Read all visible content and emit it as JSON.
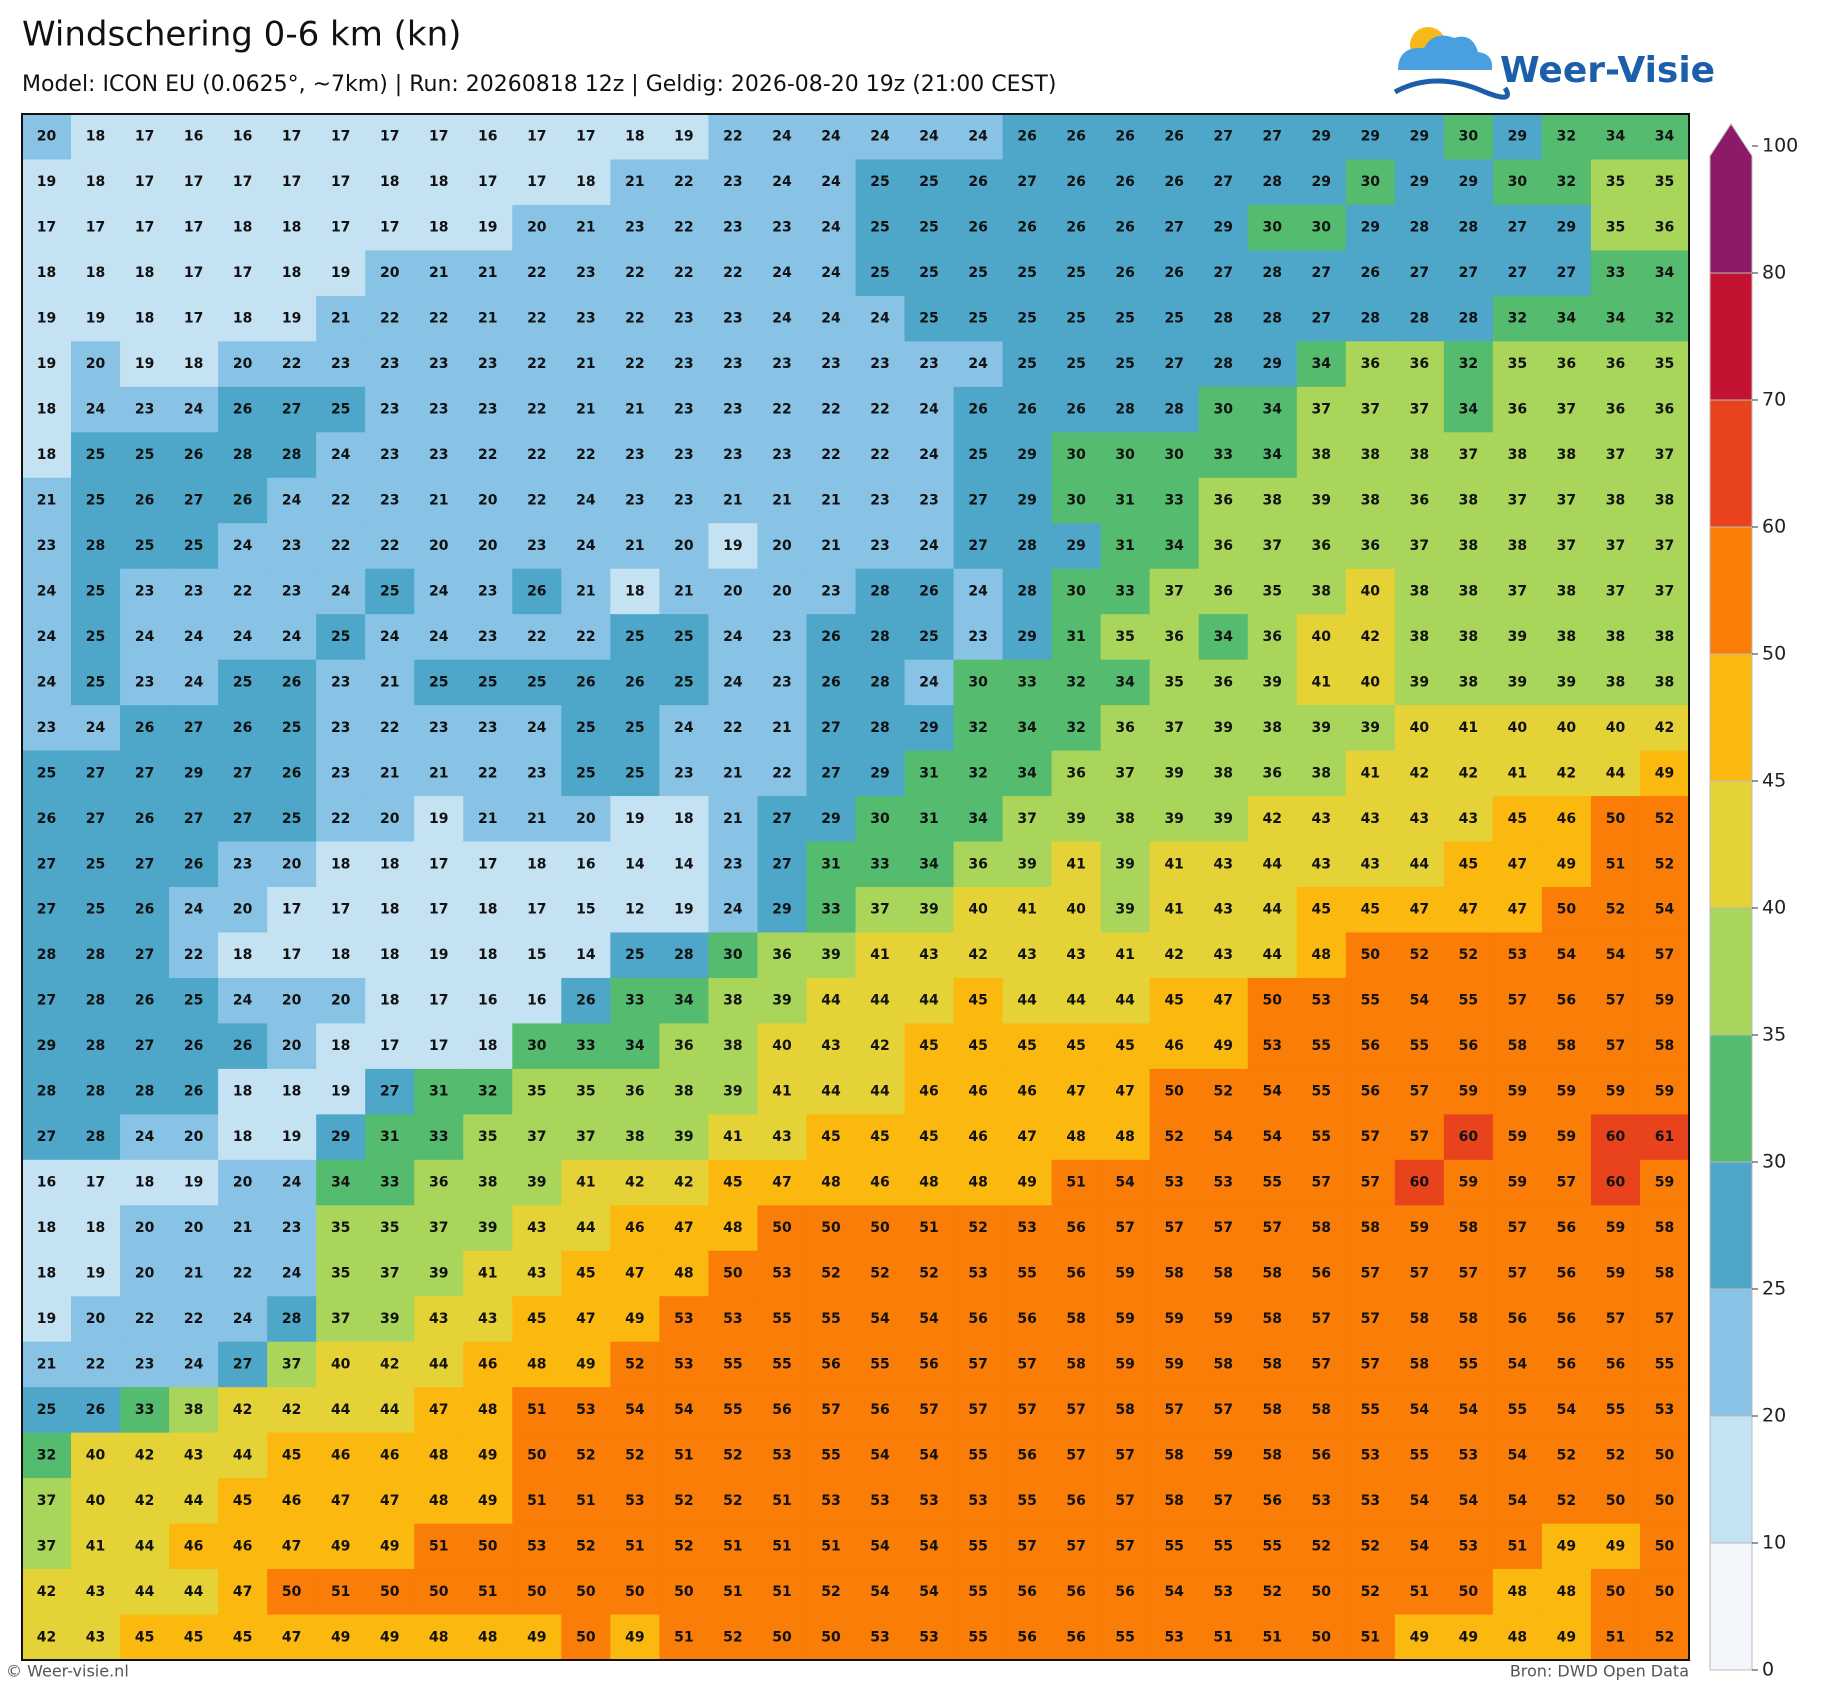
{
  "header": {
    "title": "Windschering 0-6 km (kn)",
    "subtitle": "Model: ICON EU (0.0625°, ~7km)  |  Run: 20260818 12z  |  Geldig: 2026-08-20 19z (21:00 CEST)"
  },
  "logo": {
    "text": "Weer-Visie"
  },
  "map": {
    "grid": [
      [
        20,
        18,
        17,
        16,
        16,
        17,
        17,
        17,
        17,
        16,
        17,
        17,
        18,
        19,
        22,
        24,
        24,
        24,
        24,
        24,
        26,
        26,
        26,
        26,
        27,
        27,
        29,
        29,
        29,
        30,
        29,
        32,
        34,
        34
      ],
      [
        19,
        18,
        17,
        17,
        17,
        17,
        17,
        18,
        18,
        17,
        17,
        18,
        21,
        22,
        23,
        24,
        24,
        25,
        25,
        26,
        27,
        26,
        26,
        26,
        27,
        28,
        29,
        30,
        29,
        29,
        30,
        32,
        35,
        35
      ],
      [
        17,
        17,
        17,
        17,
        18,
        18,
        17,
        17,
        18,
        19,
        20,
        21,
        23,
        22,
        23,
        23,
        24,
        25,
        25,
        26,
        26,
        26,
        26,
        27,
        29,
        30,
        30,
        29,
        28,
        28,
        27,
        29,
        35,
        36
      ],
      [
        18,
        18,
        18,
        17,
        17,
        18,
        19,
        20,
        21,
        21,
        22,
        23,
        22,
        22,
        22,
        24,
        24,
        25,
        25,
        25,
        25,
        25,
        26,
        26,
        27,
        28,
        27,
        26,
        27,
        27,
        27,
        27,
        33,
        34
      ],
      [
        19,
        19,
        18,
        17,
        18,
        19,
        21,
        22,
        22,
        21,
        22,
        23,
        22,
        23,
        23,
        24,
        24,
        24,
        25,
        25,
        25,
        25,
        25,
        25,
        28,
        28,
        27,
        28,
        28,
        28,
        32,
        34,
        34,
        32
      ],
      [
        19,
        20,
        19,
        18,
        20,
        22,
        23,
        23,
        23,
        23,
        22,
        21,
        22,
        23,
        23,
        23,
        23,
        23,
        23,
        24,
        25,
        25,
        25,
        27,
        28,
        29,
        34,
        36,
        36,
        32,
        35,
        36,
        36,
        35
      ],
      [
        18,
        24,
        23,
        24,
        26,
        27,
        25,
        23,
        23,
        23,
        22,
        21,
        21,
        23,
        23,
        22,
        22,
        22,
        24,
        26,
        26,
        26,
        28,
        28,
        30,
        34,
        37,
        37,
        37,
        34,
        36,
        37,
        36,
        36
      ],
      [
        18,
        25,
        25,
        26,
        28,
        28,
        24,
        23,
        23,
        22,
        22,
        22,
        23,
        23,
        23,
        23,
        22,
        22,
        24,
        25,
        29,
        30,
        30,
        30,
        33,
        34,
        38,
        38,
        38,
        37,
        38,
        38,
        37,
        37
      ],
      [
        21,
        25,
        26,
        27,
        26,
        24,
        22,
        23,
        21,
        20,
        22,
        24,
        23,
        23,
        21,
        21,
        21,
        23,
        23,
        27,
        29,
        30,
        31,
        33,
        36,
        38,
        39,
        38,
        36,
        38,
        37,
        37,
        38,
        38
      ],
      [
        23,
        28,
        25,
        25,
        24,
        23,
        22,
        22,
        20,
        20,
        23,
        24,
        21,
        20,
        19,
        20,
        21,
        23,
        24,
        27,
        28,
        29,
        31,
        34,
        36,
        37,
        36,
        36,
        37,
        38,
        38,
        37,
        37,
        37
      ],
      [
        24,
        25,
        23,
        23,
        22,
        23,
        24,
        25,
        24,
        23,
        26,
        21,
        18,
        21,
        20,
        20,
        23,
        28,
        26,
        24,
        28,
        30,
        33,
        37,
        36,
        35,
        38,
        40,
        38,
        38,
        37,
        38,
        37,
        37
      ],
      [
        24,
        25,
        24,
        24,
        24,
        24,
        25,
        24,
        24,
        23,
        22,
        22,
        25,
        25,
        24,
        23,
        26,
        28,
        25,
        23,
        29,
        31,
        35,
        36,
        34,
        36,
        40,
        42,
        38,
        38,
        39,
        38,
        38,
        38
      ],
      [
        24,
        25,
        23,
        24,
        25,
        26,
        23,
        21,
        25,
        25,
        25,
        26,
        26,
        25,
        24,
        23,
        26,
        28,
        24,
        30,
        33,
        32,
        34,
        35,
        36,
        39,
        41,
        40,
        39,
        38,
        39,
        39,
        38,
        38
      ],
      [
        23,
        24,
        26,
        27,
        26,
        25,
        23,
        22,
        23,
        23,
        24,
        25,
        25,
        24,
        22,
        21,
        27,
        28,
        29,
        32,
        34,
        32,
        36,
        37,
        39,
        38,
        39,
        39,
        40,
        41,
        40,
        40,
        40,
        42
      ],
      [
        25,
        27,
        27,
        29,
        27,
        26,
        23,
        21,
        21,
        22,
        23,
        25,
        25,
        23,
        21,
        22,
        27,
        29,
        31,
        32,
        34,
        36,
        37,
        39,
        38,
        36,
        38,
        41,
        42,
        42,
        41,
        42,
        44,
        49
      ],
      [
        26,
        27,
        26,
        27,
        27,
        25,
        22,
        20,
        19,
        21,
        21,
        20,
        19,
        18,
        21,
        27,
        29,
        30,
        31,
        34,
        37,
        39,
        38,
        39,
        39,
        42,
        43,
        43,
        43,
        43,
        45,
        46,
        50,
        52
      ],
      [
        27,
        25,
        27,
        26,
        23,
        20,
        18,
        18,
        17,
        17,
        18,
        16,
        14,
        14,
        23,
        27,
        31,
        33,
        34,
        36,
        39,
        41,
        39,
        41,
        43,
        44,
        43,
        43,
        44,
        45,
        47,
        49,
        51,
        52
      ],
      [
        27,
        25,
        26,
        24,
        20,
        17,
        17,
        18,
        17,
        18,
        17,
        15,
        12,
        19,
        24,
        29,
        33,
        37,
        39,
        40,
        41,
        40,
        39,
        41,
        43,
        44,
        45,
        45,
        47,
        47,
        47,
        50,
        52,
        54
      ],
      [
        28,
        28,
        27,
        22,
        18,
        17,
        18,
        18,
        19,
        18,
        15,
        14,
        25,
        28,
        30,
        36,
        39,
        41,
        43,
        42,
        43,
        43,
        41,
        42,
        43,
        44,
        48,
        50,
        52,
        52,
        53,
        54,
        54,
        57
      ],
      [
        27,
        28,
        26,
        25,
        24,
        20,
        20,
        18,
        17,
        16,
        16,
        26,
        33,
        34,
        38,
        39,
        44,
        44,
        44,
        45,
        44,
        44,
        44,
        45,
        47,
        50,
        53,
        55,
        54,
        55,
        57,
        56,
        57,
        59
      ],
      [
        29,
        28,
        27,
        26,
        26,
        20,
        18,
        17,
        17,
        18,
        30,
        33,
        34,
        36,
        38,
        40,
        43,
        42,
        45,
        45,
        45,
        45,
        45,
        46,
        49,
        53,
        55,
        56,
        55,
        56,
        58,
        58,
        57,
        58
      ],
      [
        28,
        28,
        28,
        26,
        18,
        18,
        19,
        27,
        31,
        32,
        35,
        35,
        36,
        38,
        39,
        41,
        44,
        44,
        46,
        46,
        46,
        47,
        47,
        50,
        52,
        54,
        55,
        56,
        57,
        59,
        59,
        59,
        59,
        59
      ],
      [
        27,
        28,
        24,
        20,
        18,
        19,
        29,
        31,
        33,
        35,
        37,
        37,
        38,
        39,
        41,
        43,
        45,
        45,
        45,
        46,
        47,
        48,
        48,
        52,
        54,
        54,
        55,
        57,
        57,
        60,
        59,
        59,
        60,
        61
      ],
      [
        16,
        17,
        18,
        19,
        20,
        24,
        34,
        33,
        36,
        38,
        39,
        41,
        42,
        42,
        45,
        47,
        48,
        46,
        48,
        48,
        49,
        51,
        54,
        53,
        53,
        55,
        57,
        57,
        60,
        59,
        59,
        57,
        60,
        59
      ],
      [
        18,
        18,
        20,
        20,
        21,
        23,
        35,
        35,
        37,
        39,
        43,
        44,
        46,
        47,
        48,
        50,
        50,
        50,
        51,
        52,
        53,
        56,
        57,
        57,
        57,
        57,
        58,
        58,
        59,
        58,
        57,
        56,
        59,
        58
      ],
      [
        18,
        19,
        20,
        21,
        22,
        24,
        35,
        37,
        39,
        41,
        43,
        45,
        47,
        48,
        50,
        53,
        52,
        52,
        52,
        53,
        55,
        56,
        59,
        58,
        58,
        58,
        56,
        57,
        57,
        57,
        57,
        56,
        59,
        58
      ],
      [
        19,
        20,
        22,
        22,
        24,
        28,
        37,
        39,
        43,
        43,
        45,
        47,
        49,
        53,
        53,
        55,
        55,
        54,
        54,
        56,
        56,
        58,
        59,
        59,
        59,
        58,
        57,
        57,
        58,
        58,
        56,
        56,
        57,
        57
      ],
      [
        21,
        22,
        23,
        24,
        27,
        37,
        40,
        42,
        44,
        46,
        48,
        49,
        52,
        53,
        55,
        55,
        56,
        55,
        56,
        57,
        57,
        58,
        59,
        59,
        58,
        58,
        57,
        57,
        58,
        55,
        54,
        56,
        56,
        55
      ],
      [
        25,
        26,
        33,
        38,
        42,
        42,
        44,
        44,
        47,
        48,
        51,
        53,
        54,
        54,
        55,
        56,
        57,
        56,
        57,
        57,
        57,
        57,
        58,
        57,
        57,
        58,
        58,
        55,
        54,
        54,
        55,
        54,
        55,
        53
      ],
      [
        32,
        40,
        42,
        43,
        44,
        45,
        46,
        46,
        48,
        49,
        50,
        52,
        52,
        51,
        52,
        53,
        55,
        54,
        54,
        55,
        56,
        57,
        57,
        58,
        59,
        58,
        56,
        53,
        55,
        53,
        54,
        52,
        52,
        50
      ],
      [
        37,
        40,
        42,
        44,
        45,
        46,
        47,
        47,
        48,
        49,
        51,
        51,
        53,
        52,
        52,
        51,
        53,
        53,
        53,
        53,
        55,
        56,
        57,
        58,
        57,
        56,
        53,
        53,
        54,
        54,
        54,
        52,
        50,
        50
      ],
      [
        37,
        41,
        44,
        46,
        46,
        47,
        49,
        49,
        51,
        50,
        53,
        52,
        51,
        52,
        51,
        51,
        51,
        54,
        54,
        55,
        57,
        57,
        57,
        55,
        55,
        55,
        52,
        52,
        54,
        53,
        51,
        49,
        49,
        50
      ],
      [
        42,
        43,
        44,
        44,
        47,
        50,
        51,
        50,
        50,
        51,
        50,
        50,
        50,
        50,
        51,
        51,
        52,
        54,
        54,
        55,
        56,
        56,
        56,
        54,
        53,
        52,
        50,
        52,
        51,
        50,
        48,
        48,
        50,
        50
      ],
      [
        42,
        43,
        45,
        45,
        45,
        47,
        49,
        49,
        48,
        48,
        49,
        50,
        49,
        51,
        52,
        50,
        50,
        53,
        53,
        55,
        56,
        56,
        55,
        53,
        51,
        51,
        50,
        51,
        49,
        49,
        48,
        49,
        51,
        52
      ]
    ]
  },
  "colorbar": {
    "ticks": [
      0,
      10,
      20,
      25,
      30,
      35,
      40,
      45,
      50,
      60,
      70,
      80,
      100
    ],
    "colors": [
      "#f2f6fa",
      "#c5e2f3",
      "#88c3e6",
      "#4ea6c8",
      "#55bb6e",
      "#a9d55b",
      "#e4d236",
      "#fbb80f",
      "#f97d07",
      "#e8431c",
      "#c41232",
      "#8c1a68"
    ]
  },
  "footer": {
    "copyright": "© Weer-visie.nl",
    "source": "Bron: DWD Open Data"
  }
}
